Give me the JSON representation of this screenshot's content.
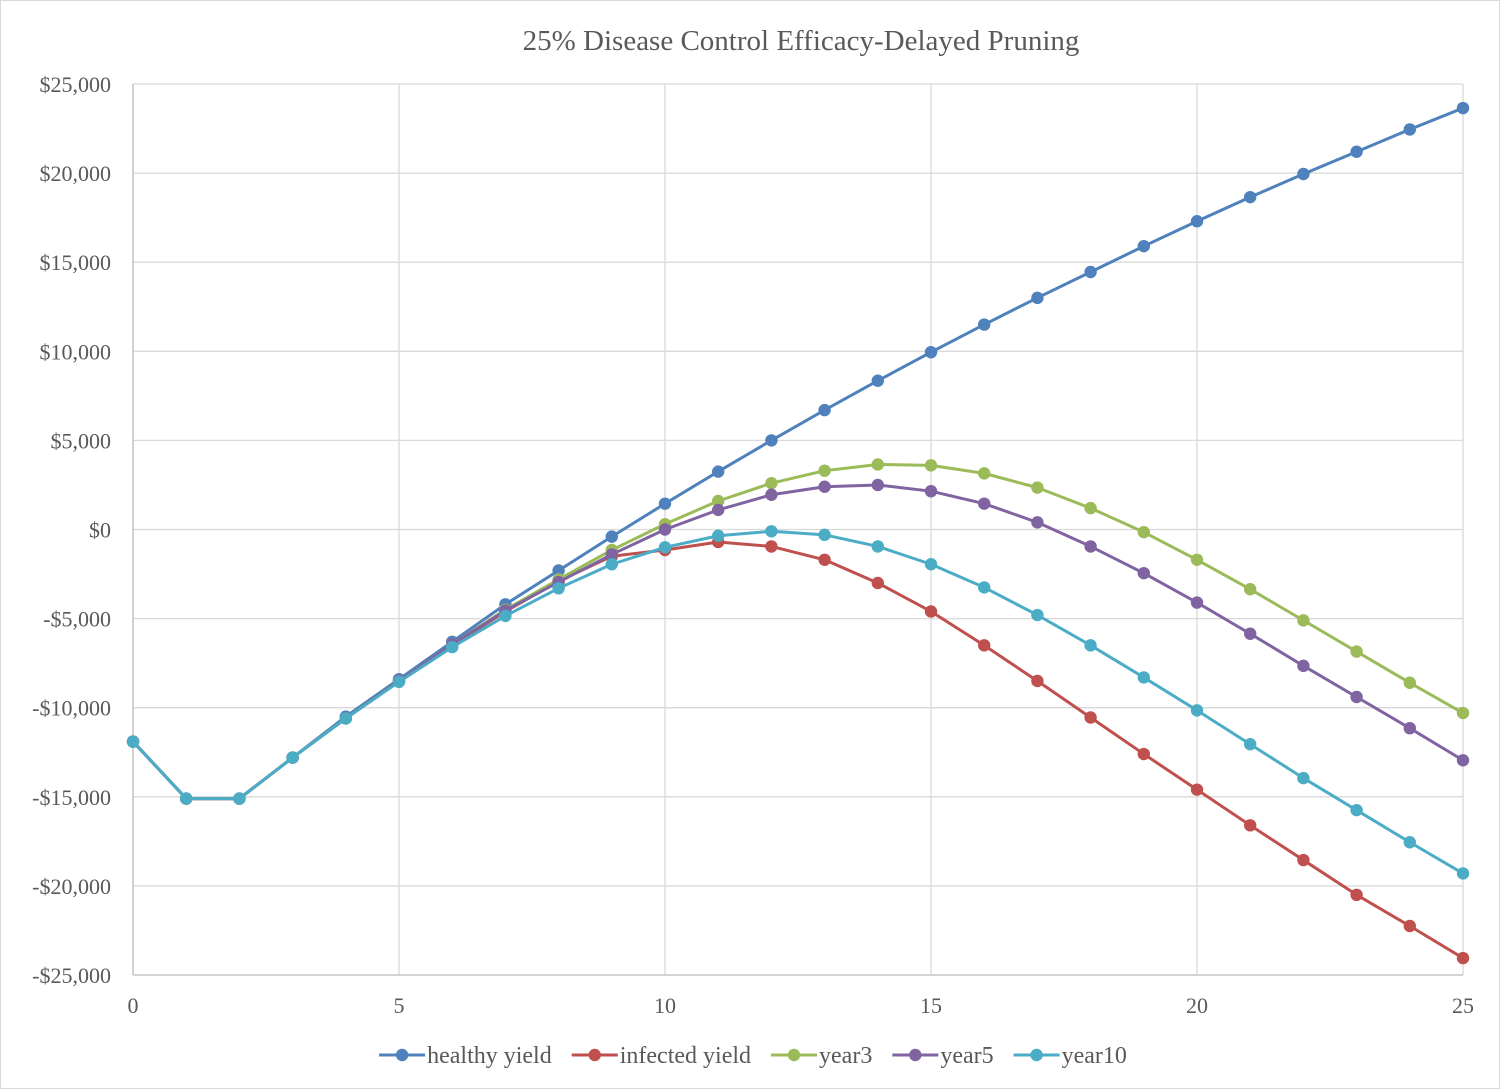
{
  "chart_data": {
    "type": "line",
    "title": "25% Disease Control Efficacy-Delayed Pruning",
    "xlabel": "",
    "ylabel": "",
    "xlim": [
      0,
      25
    ],
    "ylim": [
      -25000,
      25000
    ],
    "x_ticks": [
      {
        "value": 0,
        "label": "0"
      },
      {
        "value": 5,
        "label": "5"
      },
      {
        "value": 10,
        "label": "10"
      },
      {
        "value": 15,
        "label": "15"
      },
      {
        "value": 20,
        "label": "20"
      },
      {
        "value": 25,
        "label": "25"
      }
    ],
    "y_ticks": [
      {
        "value": 25000,
        "label": "$25,000"
      },
      {
        "value": 20000,
        "label": "$20,000"
      },
      {
        "value": 15000,
        "label": "$15,000"
      },
      {
        "value": 10000,
        "label": "$10,000"
      },
      {
        "value": 5000,
        "label": "$5,000"
      },
      {
        "value": 0,
        "label": "$0"
      },
      {
        "value": -5000,
        "label": "-$5,000"
      },
      {
        "value": -10000,
        "label": "-$10,000"
      },
      {
        "value": -15000,
        "label": "-$15,000"
      },
      {
        "value": -20000,
        "label": "-$20,000"
      },
      {
        "value": -25000,
        "label": "-$25,000"
      }
    ],
    "grid": true,
    "legend_position": "bottom",
    "x": [
      0,
      1,
      2,
      3,
      4,
      5,
      6,
      7,
      8,
      9,
      10,
      11,
      12,
      13,
      14,
      15,
      16,
      17,
      18,
      19,
      20,
      21,
      22,
      23,
      24,
      25
    ],
    "series": [
      {
        "name": "healthy yield",
        "color": "#4f81bd",
        "values": [
          -11900,
          -15100,
          -15100,
          -12800,
          -10500,
          -8400,
          -6300,
          -4200,
          -2300,
          -400,
          1450,
          3250,
          5000,
          6700,
          8350,
          9950,
          11500,
          13000,
          14450,
          15900,
          17300,
          18650,
          19950,
          21200,
          22450,
          23650
        ]
      },
      {
        "name": "infected yield",
        "color": "#c0504d",
        "values": [
          -11900,
          -15100,
          -15100,
          -12800,
          -10600,
          -8500,
          -6500,
          -4600,
          -2900,
          -1500,
          -1150,
          -700,
          -950,
          -1700,
          -3000,
          -4600,
          -6500,
          -8500,
          -10550,
          -12600,
          -14600,
          -16600,
          -18550,
          -20500,
          -22250,
          -24050
        ]
      },
      {
        "name": "year3",
        "color": "#9bbb59",
        "values": [
          -11900,
          -15100,
          -15100,
          -12800,
          -10600,
          -8500,
          -6450,
          -4500,
          -2800,
          -1150,
          300,
          1600,
          2600,
          3300,
          3650,
          3600,
          3150,
          2350,
          1200,
          -150,
          -1700,
          -3350,
          -5100,
          -6850,
          -8600,
          -10300
        ]
      },
      {
        "name": "year5",
        "color": "#8064a2",
        "values": [
          -11900,
          -15100,
          -15100,
          -12800,
          -10600,
          -8500,
          -6450,
          -4550,
          -2950,
          -1400,
          0,
          1100,
          1950,
          2400,
          2500,
          2150,
          1450,
          400,
          -950,
          -2450,
          -4100,
          -5850,
          -7650,
          -9400,
          -11150,
          -12950
        ]
      },
      {
        "name": "year10",
        "color": "#4bacc6",
        "values": [
          -11900,
          -15100,
          -15100,
          -12800,
          -10600,
          -8550,
          -6600,
          -4850,
          -3300,
          -1950,
          -1000,
          -350,
          -100,
          -300,
          -950,
          -1950,
          -3250,
          -4800,
          -6500,
          -8300,
          -10150,
          -12050,
          -13950,
          -15750,
          -17550,
          -19300
        ]
      }
    ]
  }
}
